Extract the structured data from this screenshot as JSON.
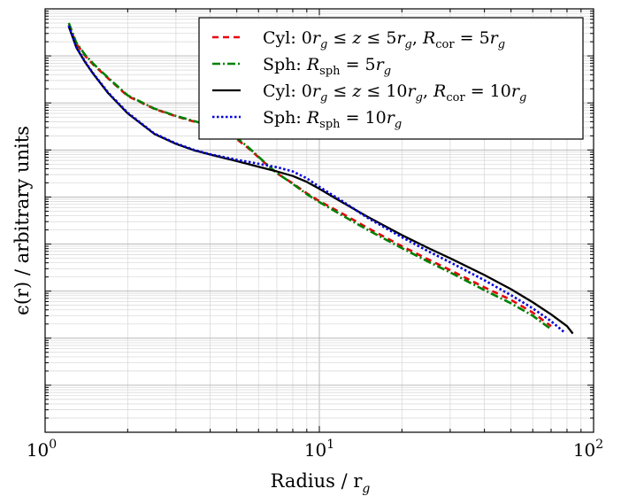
{
  "chart_data": {
    "type": "line",
    "xlabel": {
      "main": "Radius / r",
      "sub": "g"
    },
    "ylabel": "ϵ(r) / arbitrary units",
    "x_scale": "log",
    "y_scale": "log",
    "xlim": [
      1,
      100
    ],
    "ylim": [
      0.01,
      10000000
    ],
    "x_ticks": [
      {
        "value": 1,
        "base": "10",
        "exp": "0"
      },
      {
        "value": 10,
        "base": "10",
        "exp": "1"
      },
      {
        "value": 100,
        "base": "10",
        "exp": "2"
      }
    ],
    "grid": true,
    "legend_position": "top-right",
    "series": [
      {
        "name": "cyl5",
        "legend": [
          {
            "t": "Cyl: 0"
          },
          {
            "t": "r",
            "i": true
          },
          {
            "t": "g",
            "i": true,
            "sub": true
          },
          {
            "t": " ≤ "
          },
          {
            "t": "z",
            "i": true
          },
          {
            "t": " ≤ 5"
          },
          {
            "t": "r",
            "i": true
          },
          {
            "t": "g",
            "i": true,
            "sub": true
          },
          {
            "t": ", "
          },
          {
            "t": "R",
            "i": true
          },
          {
            "t": "cor",
            "sub": true
          },
          {
            "t": " = 5"
          },
          {
            "t": "r",
            "i": true
          },
          {
            "t": "g",
            "i": true,
            "sub": true
          }
        ],
        "color": "#e8000b",
        "dash": "7,5",
        "width": 2.6,
        "x": [
          1.22,
          1.3,
          1.4,
          1.5,
          1.7,
          2.0,
          2.5,
          3.0,
          3.5,
          4.0,
          4.5,
          5.0,
          5.5,
          6.0,
          6.5,
          7.0,
          8.0,
          9.0,
          10,
          12,
          15,
          20,
          25,
          30,
          40,
          50,
          60,
          70
        ],
        "y": [
          4500000,
          1800000,
          1000000,
          650000,
          330000,
          140000,
          75000,
          52000,
          40000,
          32000,
          24000,
          17000,
          11000,
          7000,
          4600,
          3200,
          1950,
          1200,
          820,
          460,
          220,
          90,
          47,
          28,
          12,
          6.5,
          3.5,
          1.8
        ]
      },
      {
        "name": "sph5",
        "legend": [
          {
            "t": "Sph: "
          },
          {
            "t": "R",
            "i": true
          },
          {
            "t": "sph",
            "sub": true
          },
          {
            "t": " = 5"
          },
          {
            "t": "r",
            "i": true
          },
          {
            "t": "g",
            "i": true,
            "sub": true
          }
        ],
        "color": "#008000",
        "dash": "9,3,2,3",
        "width": 2.6,
        "x": [
          1.22,
          1.3,
          1.4,
          1.5,
          1.7,
          2.0,
          2.5,
          3.0,
          3.5,
          4.0,
          4.5,
          5.0,
          5.5,
          6.0,
          6.5,
          7.0,
          8.0,
          9.0,
          10,
          12,
          15,
          20,
          25,
          30,
          40,
          50,
          60,
          70
        ],
        "y": [
          5000000,
          1900000,
          1050000,
          680000,
          340000,
          145000,
          76000,
          53000,
          41000,
          33000,
          25000,
          18000,
          11500,
          7200,
          4700,
          3250,
          1900,
          1150,
          780,
          420,
          200,
          82,
          42,
          25,
          10.5,
          5.5,
          3.0,
          1.55
        ]
      },
      {
        "name": "cyl10",
        "legend": [
          {
            "t": "Cyl: 0"
          },
          {
            "t": "r",
            "i": true
          },
          {
            "t": "g",
            "i": true,
            "sub": true
          },
          {
            "t": " ≤ "
          },
          {
            "t": "z",
            "i": true
          },
          {
            "t": " ≤ 10"
          },
          {
            "t": "r",
            "i": true
          },
          {
            "t": "g",
            "i": true,
            "sub": true
          },
          {
            "t": ", "
          },
          {
            "t": "R",
            "i": true
          },
          {
            "t": "cor",
            "sub": true
          },
          {
            "t": " = 10"
          },
          {
            "t": "r",
            "i": true
          },
          {
            "t": "g",
            "i": true,
            "sub": true
          }
        ],
        "color": "#000000",
        "dash": "",
        "width": 2.3,
        "x": [
          1.22,
          1.3,
          1.4,
          1.5,
          1.7,
          2.0,
          2.5,
          3.0,
          3.5,
          4.0,
          5.0,
          6.0,
          7.0,
          8.0,
          9.0,
          10,
          12,
          15,
          20,
          25,
          30,
          40,
          50,
          60,
          70,
          80,
          84
        ],
        "y": [
          4200000,
          1500000,
          730000,
          410000,
          160000,
          60000,
          22000,
          13500,
          9800,
          8000,
          5800,
          4400,
          3500,
          2800,
          2100,
          1500,
          800,
          380,
          155,
          82,
          50,
          22,
          11,
          5.8,
          3.2,
          1.8,
          1.25
        ]
      },
      {
        "name": "sph10",
        "legend": [
          {
            "t": "Sph: "
          },
          {
            "t": "R",
            "i": true
          },
          {
            "t": "sph",
            "sub": true
          },
          {
            "t": " = 10"
          },
          {
            "t": "r",
            "i": true
          },
          {
            "t": "g",
            "i": true,
            "sub": true
          }
        ],
        "color": "#0000dd",
        "dash": "2.5,2.5",
        "width": 2.6,
        "x": [
          1.22,
          1.3,
          1.4,
          1.5,
          1.7,
          2.0,
          2.5,
          3.0,
          3.5,
          4.0,
          5.0,
          6.0,
          7.0,
          8.0,
          9.0,
          10,
          12,
          15,
          20,
          25,
          30,
          40,
          50,
          60,
          70,
          78
        ],
        "y": [
          4400000,
          1550000,
          750000,
          420000,
          165000,
          62000,
          22500,
          13800,
          10000,
          8100,
          6200,
          5100,
          4300,
          3500,
          2500,
          1650,
          850,
          360,
          140,
          70,
          41,
          17,
          8.2,
          4.3,
          2.3,
          1.35
        ]
      }
    ]
  }
}
